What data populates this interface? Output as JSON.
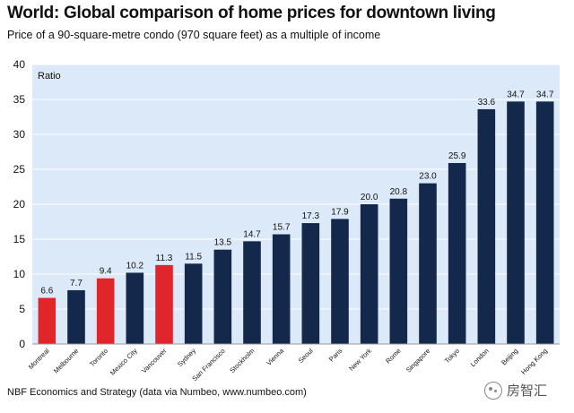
{
  "chart_data": {
    "type": "bar",
    "title": "World: Global comparison of home prices for downtown living",
    "subtitle": "Price of a 90-square-metre condo (970 square feet) as a multiple of income",
    "ylabel": "Ratio",
    "xlabel": "",
    "ylim": [
      0,
      40
    ],
    "yticks": [
      0,
      5,
      10,
      15,
      20,
      25,
      30,
      35,
      40
    ],
    "grid": true,
    "legend": "none",
    "categories": [
      "Montreal",
      "Melbourne",
      "Toronto",
      "Mexico City",
      "Vancouver",
      "Sydney",
      "San Francisco",
      "Stockholm",
      "Vienna",
      "Seoul",
      "Paris",
      "New York",
      "Rome",
      "Singapore",
      "Tokyo",
      "London",
      "Beijing",
      "Hong Kong"
    ],
    "values": [
      6.6,
      7.7,
      9.4,
      10.2,
      11.3,
      11.5,
      13.5,
      14.7,
      15.7,
      17.3,
      17.9,
      20.0,
      20.8,
      23.0,
      25.9,
      33.6,
      34.7,
      34.7
    ],
    "value_labels": [
      "6.6",
      "7.7",
      "9.4",
      "10.2",
      "11.3",
      "11.5",
      "13.5",
      "14.7",
      "15.7",
      "17.3",
      "17.9",
      "20.0",
      "20.8",
      "23.0",
      "25.9",
      "33.6",
      "34.7",
      "34.7"
    ],
    "highlighted": [
      "Montreal",
      "Toronto",
      "Vancouver"
    ],
    "colors": {
      "highlight": "#e0262b",
      "default": "#13284a",
      "plot_background": "#dce9f8",
      "grid": "#ffffff"
    }
  },
  "source_text": "NBF Economics and Strategy (data via Numbeo, www.numbeo.com)",
  "watermark": {
    "icon": "wechat-icon",
    "text": "房智汇"
  }
}
